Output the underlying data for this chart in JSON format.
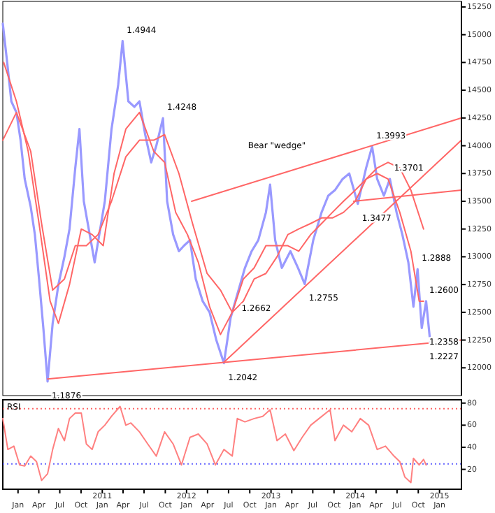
{
  "chart_data": [
    {
      "type": "line",
      "xlim": [
        "2009-10-27",
        "2015-04-06"
      ],
      "ylim": [
        11750,
        15300
      ],
      "tick_labels": "y",
      "yticks": [
        12000,
        12250,
        12500,
        12750,
        13000,
        13250,
        13500,
        13750,
        14000,
        14250,
        14500,
        14750,
        15000,
        15250
      ],
      "series": [
        {
          "color": "#9999ff",
          "x": [
            "2009-10-27",
            "2009-11-15",
            "2009-12-03",
            "2009-12-25",
            "2010-01-12",
            "2010-01-30",
            "2010-02-25",
            "2010-03-15",
            "2010-04-02",
            "2010-04-21",
            "2010-05-09",
            "2010-05-31",
            "2010-06-25",
            "2010-07-21",
            "2010-08-12",
            "2010-09-06",
            "2010-09-24",
            "2010-10-13",
            "2010-11-29",
            "2011-01-12",
            "2011-02-10",
            "2011-03-11",
            "2011-03-30",
            "2011-04-24",
            "2011-05-20",
            "2011-06-11",
            "2011-07-06",
            "2011-08-01",
            "2011-08-23",
            "2011-09-21",
            "2011-10-09",
            "2011-11-04",
            "2011-11-29",
            "2011-12-21",
            "2012-01-16",
            "2012-02-10",
            "2012-03-11",
            "2012-04-10",
            "2012-05-09",
            "2012-06-11",
            "2012-07-10",
            "2012-08-08",
            "2012-09-10",
            "2012-10-09",
            "2012-11-07",
            "2012-12-10",
            "2012-12-28",
            "2013-01-19",
            "2013-02-17",
            "2013-03-26",
            "2013-04-28",
            "2013-05-27",
            "2013-07-03",
            "2013-08-08",
            "2013-09-06",
            "2013-10-05",
            "2013-11-07",
            "2013-12-06",
            "2014-01-12",
            "2014-02-17",
            "2014-03-15",
            "2014-04-06",
            "2014-05-05",
            "2014-05-31",
            "2014-06-29",
            "2014-07-24",
            "2014-08-19",
            "2014-09-10",
            "2014-09-28",
            "2014-10-16",
            "2014-11-04",
            "2014-11-22"
          ],
          "values": [
            15100,
            14750,
            14400,
            14300,
            14050,
            13700,
            13450,
            13200,
            12800,
            12350,
            11876,
            12400,
            12750,
            13000,
            13250,
            13800,
            14150,
            13500,
            12950,
            13500,
            14150,
            14550,
            14944,
            14400,
            14350,
            14400,
            14100,
            13850,
            14000,
            14248,
            13500,
            13200,
            13050,
            13100,
            13150,
            12800,
            12600,
            12500,
            12250,
            12042,
            12450,
            12662,
            12900,
            13050,
            13150,
            13400,
            13650,
            13150,
            12900,
            13050,
            12900,
            12755,
            13150,
            13400,
            13550,
            13600,
            13700,
            13750,
            13477,
            13800,
            13993,
            13700,
            13550,
            13701,
            13400,
            13200,
            12950,
            12550,
            12888,
            12358,
            12600,
            12227
          ]
        },
        {
          "color": "#ff6666",
          "x": [
            "2009-10-31",
            "2009-12-25",
            "2010-02-14",
            "2010-04-02",
            "2010-05-20",
            "2010-06-25",
            "2010-08-12",
            "2010-10-02",
            "2010-11-18",
            "2011-01-05",
            "2011-02-21",
            "2011-04-13",
            "2011-06-11",
            "2011-08-12",
            "2011-09-28",
            "2011-11-15",
            "2012-01-05",
            "2012-02-21",
            "2012-04-10",
            "2012-05-27",
            "2012-07-17",
            "2012-09-03",
            "2012-10-20",
            "2012-12-10",
            "2013-01-27",
            "2013-03-15",
            "2013-05-01",
            "2013-06-22",
            "2013-08-08",
            "2013-09-24",
            "2013-11-11",
            "2014-01-01",
            "2014-02-17",
            "2014-04-06",
            "2014-05-23",
            "2014-07-13",
            "2014-08-30",
            "2014-10-05",
            "2014-10-24"
          ],
          "values": [
            14750,
            14400,
            13950,
            13300,
            12600,
            12400,
            12750,
            13250,
            13200,
            13100,
            13750,
            14150,
            14300,
            13950,
            13850,
            13400,
            13200,
            12950,
            12550,
            12300,
            12500,
            12800,
            12900,
            13100,
            13100,
            13100,
            13050,
            13200,
            13300,
            13400,
            13500,
            13600,
            13700,
            13750,
            13700,
            13400,
            13050,
            12600,
            12600
          ]
        },
        {
          "color": "#ff6666",
          "x": [
            "2009-10-27",
            "2009-12-25",
            "2010-02-25",
            "2010-04-13",
            "2010-05-31",
            "2010-07-21",
            "2010-09-06",
            "2010-10-24",
            "2010-12-14",
            "2011-02-10",
            "2011-04-13",
            "2011-06-11",
            "2011-08-12",
            "2011-09-28",
            "2011-11-29",
            "2012-01-27",
            "2012-03-30",
            "2012-05-27",
            "2012-07-17",
            "2012-09-03",
            "2012-10-20",
            "2012-12-10",
            "2013-01-27",
            "2013-03-15",
            "2013-05-01",
            "2013-06-22",
            "2013-08-08",
            "2013-09-24",
            "2013-11-11",
            "2014-01-01",
            "2014-02-17",
            "2014-04-06",
            "2014-05-23",
            "2014-07-13",
            "2014-08-30",
            "2014-10-24"
          ],
          "values": [
            14050,
            14300,
            13950,
            13300,
            12700,
            12800,
            13100,
            13100,
            13200,
            13500,
            13900,
            14050,
            14050,
            14100,
            13750,
            13300,
            12850,
            12700,
            12500,
            12600,
            12800,
            12850,
            13000,
            13200,
            13250,
            13300,
            13350,
            13350,
            13400,
            13500,
            13700,
            13800,
            13850,
            13800,
            13600,
            13250
          ]
        },
        {
          "color": "#ff6666",
          "x": [
            "2010-05-09",
            "2015-04-06"
          ],
          "values": [
            11900,
            12250
          ]
        },
        {
          "color": "#ff6666",
          "x": [
            "2012-06-11",
            "2015-04-06"
          ],
          "values": [
            12050,
            14050
          ]
        },
        {
          "color": "#ff6666",
          "x": [
            "2012-01-23",
            "2015-04-06"
          ],
          "values": [
            13500,
            14250
          ]
        },
        {
          "color": "#ff6666",
          "x": [
            "2013-12-25",
            "2015-04-06"
          ],
          "values": [
            13500,
            13600
          ]
        }
      ],
      "annotations": [
        {
          "text": "1.4944",
          "x": "2011-03-30",
          "y": 14944
        },
        {
          "text": "1.4248",
          "x": "2011-09-21",
          "y": 14248
        },
        {
          "text": "1.3993",
          "x": "2014-03-15",
          "y": 13993
        },
        {
          "text": "1.3701",
          "x": "2014-05-31",
          "y": 13701
        },
        {
          "text": "1.3477",
          "x": "2014-01-12",
          "y": 13477
        },
        {
          "text": "1.2888",
          "x": "2014-09-28",
          "y": 12888
        },
        {
          "text": "1.2600",
          "x": "2014-11-04",
          "y": 12600
        },
        {
          "text": "1.2358",
          "x": "2014-10-16",
          "y": 12358
        },
        {
          "text": "1.2227",
          "x": "2014-11-22",
          "y": 12227
        },
        {
          "text": "1.2662",
          "x": "2012-08-08",
          "y": 12662
        },
        {
          "text": "1.2755",
          "x": "2013-05-27",
          "y": 12755
        },
        {
          "text": "1.2042",
          "x": "2012-06-11",
          "y": 12042
        },
        {
          "text": "1.1876",
          "x": "2010-05-09",
          "y": 11876
        },
        "Bear \"wedge\""
      ]
    },
    {
      "type": "line",
      "xlim": [
        "2009-10-27",
        "2015-04-06"
      ],
      "ylim": [
        2,
        83
      ],
      "yticks": [
        20,
        40,
        60,
        80
      ],
      "xticks": [
        {
          "value": "2010-01-01",
          "label": "Jan"
        },
        {
          "value": "2010-04-01",
          "label": "Apr"
        },
        {
          "value": "2010-07-01",
          "label": "Jul"
        },
        {
          "value": "2010-10-01",
          "label": "Oct"
        },
        {
          "value": "2011-01-01",
          "label": "2011\nJan"
        },
        {
          "value": "2011-04-01",
          "label": "Apr"
        },
        {
          "value": "2011-07-01",
          "label": "Jul"
        },
        {
          "value": "2011-10-01",
          "label": "Oct"
        },
        {
          "value": "2012-01-01",
          "label": "2012\nJan"
        },
        {
          "value": "2012-04-01",
          "label": "Apr"
        },
        {
          "value": "2012-07-01",
          "label": "Jul"
        },
        {
          "value": "2012-10-01",
          "label": "Oct"
        },
        {
          "value": "2013-01-01",
          "label": "2013\nJan"
        },
        {
          "value": "2013-04-01",
          "label": "Apr"
        },
        {
          "value": "2013-07-01",
          "label": "Jul"
        },
        {
          "value": "2013-10-01",
          "label": "Oct"
        },
        {
          "value": "2014-01-01",
          "label": "2014\nJan"
        },
        {
          "value": "2014-04-01",
          "label": "Apr"
        },
        {
          "value": "2014-07-01",
          "label": "Jul"
        },
        {
          "value": "2014-10-01",
          "label": "Oct"
        },
        {
          "value": "2015-01-01",
          "label": "2015\nJan"
        }
      ],
      "ref_lines": [
        {
          "axis": "y",
          "value": 75,
          "color": "#ff6666",
          "line_style": "dotted"
        },
        {
          "axis": "y",
          "value": 25,
          "color": "#6666ff",
          "line_style": "dotted"
        }
      ],
      "annotations": [
        "RSI"
      ],
      "series": [
        {
          "color": "#ff8080",
          "x": [
            "2009-10-27",
            "2009-11-18",
            "2009-12-14",
            "2010-01-08",
            "2010-01-30",
            "2010-02-25",
            "2010-03-22",
            "2010-04-13",
            "2010-05-09",
            "2010-05-31",
            "2010-06-25",
            "2010-07-21",
            "2010-08-12",
            "2010-09-06",
            "2010-10-02",
            "2010-10-24",
            "2010-11-18",
            "2010-12-14",
            "2011-01-12",
            "2011-02-10",
            "2011-03-19",
            "2011-04-13",
            "2011-05-05",
            "2011-06-11",
            "2011-07-17",
            "2011-08-23",
            "2011-09-28",
            "2011-11-04",
            "2011-12-10",
            "2012-01-16",
            "2012-02-21",
            "2012-03-30",
            "2012-05-05",
            "2012-06-11",
            "2012-07-17",
            "2012-08-08",
            "2012-09-10",
            "2012-10-20",
            "2012-11-26",
            "2012-12-28",
            "2013-01-27",
            "2013-03-04",
            "2013-04-10",
            "2013-05-16",
            "2013-06-22",
            "2013-07-28",
            "2013-09-14",
            "2013-10-05",
            "2013-11-11",
            "2013-12-17",
            "2014-01-23",
            "2014-02-28",
            "2014-04-06",
            "2014-05-12",
            "2014-06-18",
            "2014-07-13",
            "2014-08-04",
            "2014-08-30",
            "2014-09-10",
            "2014-10-05",
            "2014-10-24",
            "2014-11-04"
          ],
          "values": [
            66,
            38,
            41,
            24,
            23,
            32,
            27,
            10,
            16,
            38,
            57,
            46,
            66,
            71,
            71,
            43,
            38,
            54,
            60,
            68,
            77,
            60,
            62,
            54,
            43,
            32,
            54,
            43,
            24,
            49,
            52,
            43,
            24,
            38,
            32,
            66,
            63,
            66,
            68,
            74,
            46,
            52,
            37,
            49,
            60,
            66,
            74,
            46,
            60,
            54,
            66,
            60,
            38,
            41,
            32,
            27,
            13,
            8,
            30,
            24,
            29,
            24
          ]
        }
      ]
    }
  ]
}
